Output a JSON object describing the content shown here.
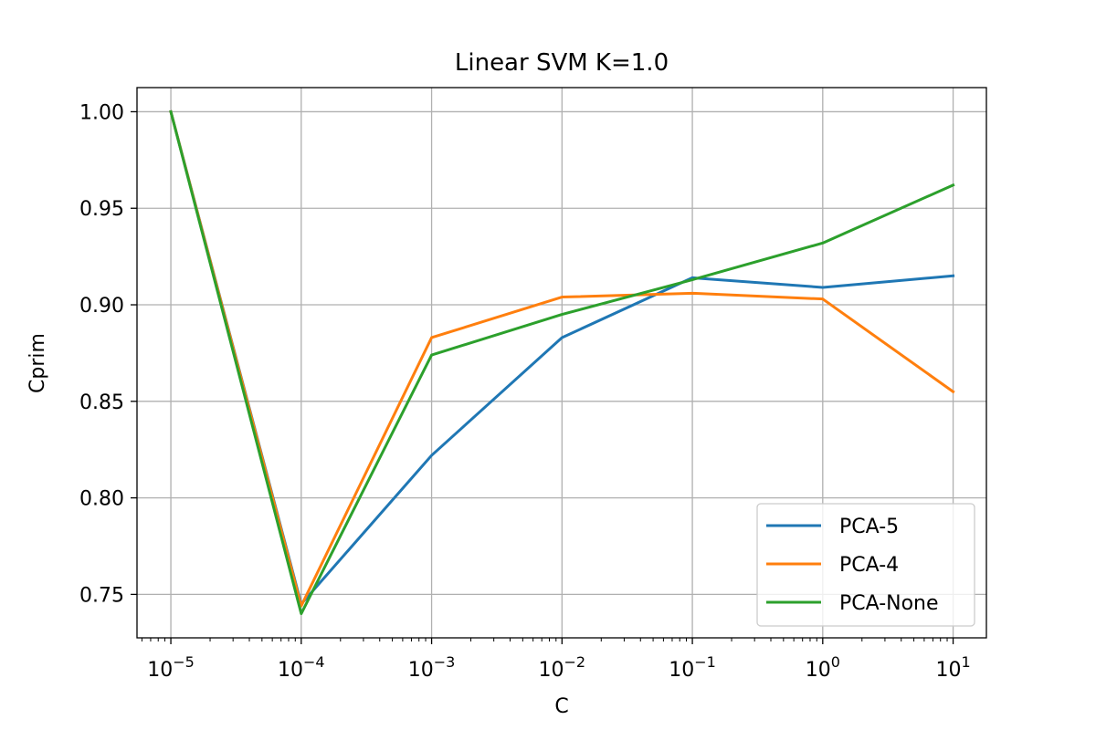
{
  "chart_data": {
    "type": "line",
    "title": "Linear SVM K=1.0",
    "xlabel": "C",
    "ylabel": "Cprim",
    "x_scale": "log",
    "x": [
      1e-05,
      0.0001,
      0.001,
      0.01,
      0.1,
      1,
      10
    ],
    "x_tick_labels": [
      {
        "base": "10",
        "exp": "−5"
      },
      {
        "base": "10",
        "exp": "−4"
      },
      {
        "base": "10",
        "exp": "−3"
      },
      {
        "base": "10",
        "exp": "−2"
      },
      {
        "base": "10",
        "exp": "−1"
      },
      {
        "base": "10",
        "exp": "0"
      },
      {
        "base": "10",
        "exp": "1"
      }
    ],
    "y_ticks": [
      "0.75",
      "0.80",
      "0.85",
      "0.90",
      "0.95",
      "1.00"
    ],
    "xlim": [
      5.5e-06,
      18
    ],
    "ylim": [
      0.7275,
      1.0125
    ],
    "grid": true,
    "legend_position": "lower-right",
    "series": [
      {
        "name": "PCA-5",
        "color": "#1f77b4",
        "values": [
          1.0,
          0.745,
          0.822,
          0.883,
          0.914,
          0.909,
          0.915
        ]
      },
      {
        "name": "PCA-4",
        "color": "#ff7f0e",
        "values": [
          1.0,
          0.744,
          0.883,
          0.904,
          0.906,
          0.903,
          0.855
        ]
      },
      {
        "name": "PCA-None",
        "color": "#2ca02c",
        "values": [
          1.0,
          0.74,
          0.874,
          0.895,
          0.913,
          0.932,
          0.962
        ]
      }
    ]
  }
}
